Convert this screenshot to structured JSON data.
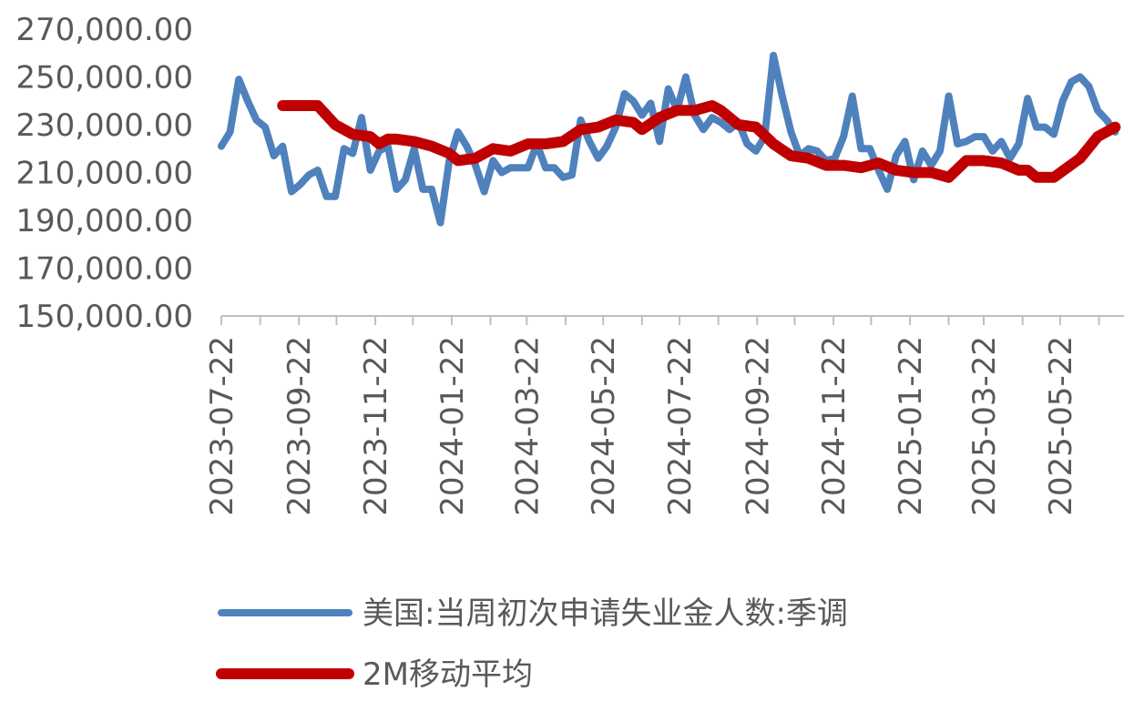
{
  "chart_data": {
    "type": "line",
    "title": "",
    "xlabel": "",
    "ylabel": "",
    "ylim": [
      150000,
      270000
    ],
    "y_ticks": [
      "270,000.00",
      "250,000.00",
      "230,000.00",
      "210,000.00",
      "190,000.00",
      "170,000.00",
      "150,000.00"
    ],
    "y_tick_values": [
      270000,
      250000,
      230000,
      210000,
      190000,
      170000,
      150000
    ],
    "x_tick_labels": [
      "2023-07-22",
      "2023-09-22",
      "2023-11-22",
      "2024-01-22",
      "2024-03-22",
      "2024-05-22",
      "2024-07-22",
      "2024-09-22",
      "2024-11-22",
      "2025-01-22",
      "2025-03-22",
      "2025-05-22"
    ],
    "x_range": [
      "2023-07-22",
      "2025-07-12"
    ],
    "grid": false,
    "legend_position": "bottom",
    "series": [
      {
        "name": "美国:当周初次申请失业金人数:季调",
        "color": "#4f81bd",
        "points": [
          [
            "2023-07-22",
            221000
          ],
          [
            "2023-07-29",
            227000
          ],
          [
            "2023-08-05",
            249000
          ],
          [
            "2023-08-12",
            240000
          ],
          [
            "2023-08-19",
            232000
          ],
          [
            "2023-08-26",
            229000
          ],
          [
            "2023-09-02",
            217000
          ],
          [
            "2023-09-09",
            221000
          ],
          [
            "2023-09-16",
            202000
          ],
          [
            "2023-09-23",
            205000
          ],
          [
            "2023-09-30",
            209000
          ],
          [
            "2023-10-07",
            211000
          ],
          [
            "2023-10-14",
            200000
          ],
          [
            "2023-10-21",
            200000
          ],
          [
            "2023-10-28",
            220000
          ],
          [
            "2023-11-04",
            218000
          ],
          [
            "2023-11-11",
            233000
          ],
          [
            "2023-11-18",
            211000
          ],
          [
            "2023-11-25",
            219000
          ],
          [
            "2023-12-02",
            221000
          ],
          [
            "2023-12-09",
            203000
          ],
          [
            "2023-12-16",
            207000
          ],
          [
            "2023-12-23",
            220000
          ],
          [
            "2023-12-30",
            203000
          ],
          [
            "2024-01-06",
            203000
          ],
          [
            "2024-01-13",
            189000
          ],
          [
            "2024-01-20",
            215000
          ],
          [
            "2024-01-27",
            227000
          ],
          [
            "2024-02-03",
            221000
          ],
          [
            "2024-02-10",
            213000
          ],
          [
            "2024-02-17",
            202000
          ],
          [
            "2024-02-24",
            215000
          ],
          [
            "2024-03-02",
            210000
          ],
          [
            "2024-03-09",
            212000
          ],
          [
            "2024-03-16",
            212000
          ],
          [
            "2024-03-23",
            212000
          ],
          [
            "2024-03-30",
            222000
          ],
          [
            "2024-04-06",
            212000
          ],
          [
            "2024-04-13",
            212000
          ],
          [
            "2024-04-20",
            208000
          ],
          [
            "2024-04-27",
            209000
          ],
          [
            "2024-05-04",
            232000
          ],
          [
            "2024-05-11",
            223000
          ],
          [
            "2024-05-18",
            216000
          ],
          [
            "2024-05-25",
            221000
          ],
          [
            "2024-06-01",
            229000
          ],
          [
            "2024-06-08",
            243000
          ],
          [
            "2024-06-15",
            240000
          ],
          [
            "2024-06-22",
            234000
          ],
          [
            "2024-06-29",
            239000
          ],
          [
            "2024-07-06",
            223000
          ],
          [
            "2024-07-13",
            245000
          ],
          [
            "2024-07-20",
            236000
          ],
          [
            "2024-07-27",
            250000
          ],
          [
            "2024-08-03",
            234000
          ],
          [
            "2024-08-10",
            228000
          ],
          [
            "2024-08-17",
            233000
          ],
          [
            "2024-08-24",
            231000
          ],
          [
            "2024-08-31",
            228000
          ],
          [
            "2024-09-07",
            231000
          ],
          [
            "2024-09-14",
            222000
          ],
          [
            "2024-09-21",
            219000
          ],
          [
            "2024-09-28",
            225000
          ],
          [
            "2024-10-05",
            259000
          ],
          [
            "2024-10-12",
            242000
          ],
          [
            "2024-10-19",
            227000
          ],
          [
            "2024-10-26",
            217000
          ],
          [
            "2024-11-02",
            220000
          ],
          [
            "2024-11-09",
            219000
          ],
          [
            "2024-11-16",
            215000
          ],
          [
            "2024-11-23",
            216000
          ],
          [
            "2024-11-30",
            225000
          ],
          [
            "2024-12-07",
            242000
          ],
          [
            "2024-12-14",
            220000
          ],
          [
            "2024-12-21",
            220000
          ],
          [
            "2024-12-28",
            211000
          ],
          [
            "2025-01-04",
            203000
          ],
          [
            "2025-01-11",
            217000
          ],
          [
            "2025-01-18",
            223000
          ],
          [
            "2025-01-25",
            207000
          ],
          [
            "2025-02-01",
            219000
          ],
          [
            "2025-02-08",
            213000
          ],
          [
            "2025-02-15",
            219000
          ],
          [
            "2025-02-22",
            242000
          ],
          [
            "2025-03-01",
            222000
          ],
          [
            "2025-03-08",
            223000
          ],
          [
            "2025-03-15",
            225000
          ],
          [
            "2025-03-22",
            225000
          ],
          [
            "2025-03-29",
            219000
          ],
          [
            "2025-04-05",
            223000
          ],
          [
            "2025-04-12",
            216000
          ],
          [
            "2025-04-19",
            222000
          ],
          [
            "2025-04-26",
            241000
          ],
          [
            "2025-05-03",
            229000
          ],
          [
            "2025-05-10",
            229000
          ],
          [
            "2025-05-17",
            226000
          ],
          [
            "2025-05-24",
            240000
          ],
          [
            "2025-05-31",
            248000
          ],
          [
            "2025-06-07",
            250000
          ],
          [
            "2025-06-14",
            246000
          ],
          [
            "2025-06-21",
            236000
          ],
          [
            "2025-06-28",
            232000
          ],
          [
            "2025-07-05",
            227000
          ]
        ]
      },
      {
        "name": "2M移动平均",
        "color": "#c00000",
        "points": [
          [
            "2023-09-09",
            238000
          ],
          [
            "2023-09-23",
            238000
          ],
          [
            "2023-10-07",
            238000
          ],
          [
            "2023-10-21",
            230000
          ],
          [
            "2023-11-04",
            226000
          ],
          [
            "2023-11-18",
            225000
          ],
          [
            "2023-11-25",
            222000
          ],
          [
            "2023-12-02",
            224000
          ],
          [
            "2023-12-09",
            224000
          ],
          [
            "2023-12-23",
            223000
          ],
          [
            "2024-01-06",
            221000
          ],
          [
            "2024-01-20",
            218000
          ],
          [
            "2024-01-27",
            215000
          ],
          [
            "2024-02-10",
            216000
          ],
          [
            "2024-02-24",
            220000
          ],
          [
            "2024-03-09",
            219000
          ],
          [
            "2024-03-23",
            222000
          ],
          [
            "2024-04-06",
            222000
          ],
          [
            "2024-04-20",
            223000
          ],
          [
            "2024-05-04",
            228000
          ],
          [
            "2024-05-18",
            229000
          ],
          [
            "2024-06-01",
            232000
          ],
          [
            "2024-06-15",
            231000
          ],
          [
            "2024-06-22",
            228000
          ],
          [
            "2024-07-06",
            233000
          ],
          [
            "2024-07-20",
            236000
          ],
          [
            "2024-08-03",
            236000
          ],
          [
            "2024-08-17",
            238000
          ],
          [
            "2024-08-24",
            236000
          ],
          [
            "2024-09-07",
            230000
          ],
          [
            "2024-09-21",
            229000
          ],
          [
            "2024-10-05",
            222000
          ],
          [
            "2024-10-19",
            217000
          ],
          [
            "2024-11-02",
            216000
          ],
          [
            "2024-11-16",
            213000
          ],
          [
            "2024-11-30",
            213000
          ],
          [
            "2024-12-14",
            212000
          ],
          [
            "2024-12-28",
            214000
          ],
          [
            "2025-01-11",
            211000
          ],
          [
            "2025-01-25",
            210000
          ],
          [
            "2025-02-08",
            210000
          ],
          [
            "2025-02-22",
            208000
          ],
          [
            "2025-03-08",
            215000
          ],
          [
            "2025-03-22",
            215000
          ],
          [
            "2025-04-05",
            214000
          ],
          [
            "2025-04-19",
            211000
          ],
          [
            "2025-04-26",
            211000
          ],
          [
            "2025-05-03",
            208000
          ],
          [
            "2025-05-17",
            208000
          ],
          [
            "2025-06-07",
            216000
          ],
          [
            "2025-06-21",
            225000
          ],
          [
            "2025-07-05",
            229000
          ]
        ]
      }
    ]
  }
}
